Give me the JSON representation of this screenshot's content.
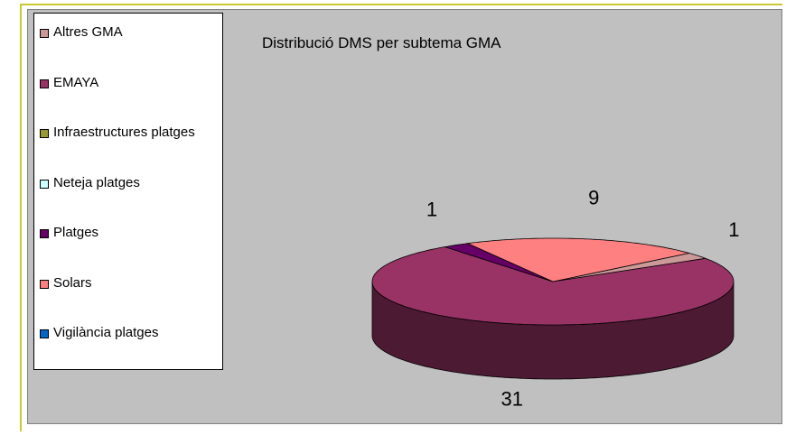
{
  "chart_data": {
    "type": "pie3d",
    "title": "Distribució DMS per subtema GMA",
    "categories": [
      "Altres GMA",
      "EMAYA",
      "Infraestructures platges",
      "Neteja platges",
      "Platges",
      "Solars",
      "Vigilància platges"
    ],
    "values": [
      1,
      31,
      0,
      0,
      1,
      9,
      0
    ],
    "colors": [
      "#cc9999",
      "#993366",
      "#999933",
      "#ccffff",
      "#660066",
      "#ff8080",
      "#0066cc"
    ],
    "legend": "left"
  }
}
